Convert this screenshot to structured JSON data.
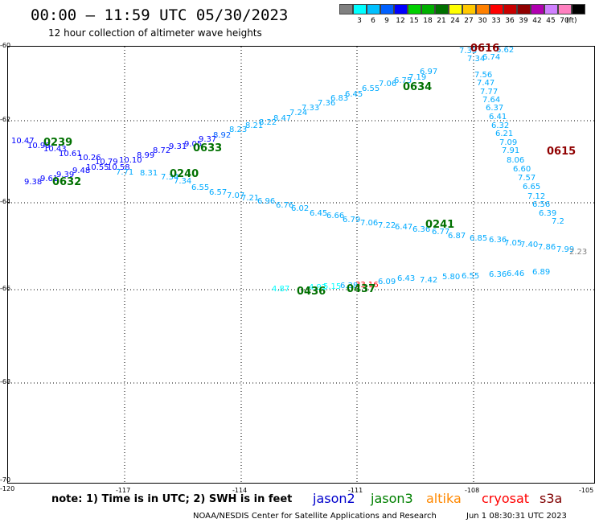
{
  "title": "00:00 – 11:59 UTC 05/30/2023",
  "subtitle": "12 hour collection of altimeter wave heights",
  "color_scale": {
    "unit": "(ft)",
    "bins": [
      {
        "label": "",
        "color": "#808080"
      },
      {
        "label": "3",
        "color": "#00ffff"
      },
      {
        "label": "6",
        "color": "#00c0ff"
      },
      {
        "label": "9",
        "color": "#0060ff"
      },
      {
        "label": "12",
        "color": "#0000ff"
      },
      {
        "label": "15",
        "color": "#00d000"
      },
      {
        "label": "18",
        "color": "#00b000"
      },
      {
        "label": "21",
        "color": "#007000"
      },
      {
        "label": "24",
        "color": "#ffff00"
      },
      {
        "label": "27",
        "color": "#ffc800"
      },
      {
        "label": "30",
        "color": "#ff8000"
      },
      {
        "label": "33",
        "color": "#ff0000"
      },
      {
        "label": "36",
        "color": "#c80000"
      },
      {
        "label": "39",
        "color": "#900000"
      },
      {
        "label": "42",
        "color": "#b000b0"
      },
      {
        "label": "45",
        "color": "#d080ff"
      },
      {
        "label": "70",
        "color": "#ff80c0"
      },
      {
        "label": "",
        "color": "#000000"
      }
    ]
  },
  "map": {
    "lat_labels": [
      "-60",
      "-62",
      "-64",
      "-66",
      "-68",
      "-70"
    ],
    "lon_labels": [
      "-120",
      "-117",
      "-114",
      "-111",
      "-108",
      "-105"
    ],
    "observations": [
      {
        "v": "10.47",
        "c": "#0000ff"
      },
      {
        "v": "10.99",
        "c": "#0000ff"
      },
      {
        "v": "10.43",
        "c": "#0000ff"
      },
      {
        "v": "10.61",
        "c": "#0000ff"
      },
      {
        "v": "10.26",
        "c": "#0000ff"
      },
      {
        "v": "10.55",
        "c": "#0000ff"
      },
      {
        "v": "9.48",
        "c": "#0000ff"
      },
      {
        "v": "9.39",
        "c": "#0000ff"
      },
      {
        "v": "9.61",
        "c": "#0000ff"
      },
      {
        "v": "9.38",
        "c": "#0000ff"
      },
      {
        "v": "10.79",
        "c": "#0000ff"
      },
      {
        "v": "10.58",
        "c": "#0000ff"
      },
      {
        "v": "10.10",
        "c": "#0000ff"
      },
      {
        "v": "8.99",
        "c": "#0000ff"
      },
      {
        "v": "8.72",
        "c": "#0000ff"
      },
      {
        "v": "9.31",
        "c": "#0000ff"
      },
      {
        "v": "9.05",
        "c": "#0000ff"
      },
      {
        "v": "9.37",
        "c": "#0000ff"
      },
      {
        "v": "8.92",
        "c": "#0060ff"
      },
      {
        "v": "8.23",
        "c": "#00aaff"
      },
      {
        "v": "8.21",
        "c": "#00aaff"
      },
      {
        "v": "8.22",
        "c": "#00aaff"
      },
      {
        "v": "8.47",
        "c": "#00aaff"
      },
      {
        "v": "7.24",
        "c": "#00aaff"
      },
      {
        "v": "7.33",
        "c": "#00aaff"
      },
      {
        "v": "7.36",
        "c": "#00aaff"
      },
      {
        "v": "6.83",
        "c": "#00aaff"
      },
      {
        "v": "6.45",
        "c": "#00aaff"
      },
      {
        "v": "6.55",
        "c": "#00aaff"
      },
      {
        "v": "7.06",
        "c": "#00aaff"
      },
      {
        "v": "6.75",
        "c": "#00aaff"
      },
      {
        "v": "7.19",
        "c": "#00aaff"
      },
      {
        "v": "6.97",
        "c": "#00aaff"
      },
      {
        "v": "7.33",
        "c": "#00aaff"
      },
      {
        "v": "7.34",
        "c": "#00aaff"
      },
      {
        "v": "6.74",
        "c": "#00aaff"
      },
      {
        "v": "6.62",
        "c": "#00aaff"
      },
      {
        "v": "7.56",
        "c": "#00aaff"
      },
      {
        "v": "7.47",
        "c": "#00aaff"
      },
      {
        "v": "7.77",
        "c": "#00aaff"
      },
      {
        "v": "7.64",
        "c": "#00aaff"
      },
      {
        "v": "6.37",
        "c": "#00aaff"
      },
      {
        "v": "6.41",
        "c": "#00aaff"
      },
      {
        "v": "6.32",
        "c": "#00aaff"
      },
      {
        "v": "6.21",
        "c": "#00aaff"
      },
      {
        "v": "7.09",
        "c": "#00aaff"
      },
      {
        "v": "7.91",
        "c": "#00aaff"
      },
      {
        "v": "8.06",
        "c": "#00aaff"
      },
      {
        "v": "6.60",
        "c": "#00aaff"
      },
      {
        "v": "7.57",
        "c": "#00aaff"
      },
      {
        "v": "6.65",
        "c": "#00aaff"
      },
      {
        "v": "7.12",
        "c": "#00aaff"
      },
      {
        "v": "6.56",
        "c": "#00aaff"
      },
      {
        "v": "6.39",
        "c": "#00aaff"
      },
      {
        "v": "7.2",
        "c": "#00aaff"
      },
      {
        "v": "7.71",
        "c": "#00aaff"
      },
      {
        "v": "8.31",
        "c": "#00aaff"
      },
      {
        "v": "7.34",
        "c": "#00aaff"
      },
      {
        "v": "7.34",
        "c": "#00aaff"
      },
      {
        "v": "6.55",
        "c": "#00aaff"
      },
      {
        "v": "6.57",
        "c": "#00aaff"
      },
      {
        "v": "7.07",
        "c": "#00aaff"
      },
      {
        "v": "7.21",
        "c": "#00aaff"
      },
      {
        "v": "6.96",
        "c": "#00aaff"
      },
      {
        "v": "6.76",
        "c": "#00aaff"
      },
      {
        "v": "6.02",
        "c": "#00aaff"
      },
      {
        "v": "6.45",
        "c": "#00aaff"
      },
      {
        "v": "6.66",
        "c": "#00aaff"
      },
      {
        "v": "6.79",
        "c": "#00aaff"
      },
      {
        "v": "7.06",
        "c": "#00aaff"
      },
      {
        "v": "7.22",
        "c": "#00aaff"
      },
      {
        "v": "6.47",
        "c": "#00aaff"
      },
      {
        "v": "6.36",
        "c": "#00aaff"
      },
      {
        "v": "6.77",
        "c": "#00aaff"
      },
      {
        "v": "6.87",
        "c": "#00aaff"
      },
      {
        "v": "6.85",
        "c": "#00aaff"
      },
      {
        "v": "6.36",
        "c": "#00aaff"
      },
      {
        "v": "7.05",
        "c": "#00aaff"
      },
      {
        "v": "7.40",
        "c": "#00aaff"
      },
      {
        "v": "7.86",
        "c": "#00aaff"
      },
      {
        "v": "7.99",
        "c": "#00aaff"
      },
      {
        "v": "2.23",
        "c": "#808080"
      },
      {
        "v": "4.87",
        "c": "#00ffff"
      },
      {
        "v": "4.92",
        "c": "#00ffff"
      },
      {
        "v": "5.15",
        "c": "#00ffff"
      },
      {
        "v": "6.38",
        "c": "#00aaff"
      },
      {
        "v": "33.16",
        "c": "#ff0000"
      },
      {
        "v": "6.09",
        "c": "#00aaff"
      },
      {
        "v": "6.43",
        "c": "#00aaff"
      },
      {
        "v": "7.42",
        "c": "#00aaff"
      },
      {
        "v": "5.80",
        "c": "#00aaff"
      },
      {
        "v": "6.55",
        "c": "#00aaff"
      },
      {
        "v": "6.36",
        "c": "#00aaff"
      },
      {
        "v": "6.46",
        "c": "#00aaff"
      },
      {
        "v": "6.89",
        "c": "#00aaff"
      }
    ],
    "passes": [
      {
        "id": "0239",
        "c": "#007000"
      },
      {
        "id": "0632",
        "c": "#007000"
      },
      {
        "id": "0633",
        "c": "#007000"
      },
      {
        "id": "0240",
        "c": "#007000"
      },
      {
        "id": "0634",
        "c": "#007000"
      },
      {
        "id": "0616",
        "c": "#900000"
      },
      {
        "id": "0615",
        "c": "#900000"
      },
      {
        "id": "0241",
        "c": "#007000"
      },
      {
        "id": "0436",
        "c": "#007000"
      },
      {
        "id": "0437",
        "c": "#007000"
      }
    ]
  },
  "footer": {
    "note": "note:  1) Time is in UTC;  2) SWH is in feet",
    "legend": [
      {
        "label": "jason2",
        "color": "#0000cc"
      },
      {
        "label": "jason3",
        "color": "#008000"
      },
      {
        "label": "altika",
        "color": "#ff8800"
      },
      {
        "label": "cryosat",
        "color": "#ff0000"
      },
      {
        "label": "s3a",
        "color": "#800000"
      }
    ],
    "credit": "NOAA/NESDIS Center for Satellite Applications and Research",
    "timestamp": "Jun  1 08:30:31 UTC 2023"
  }
}
